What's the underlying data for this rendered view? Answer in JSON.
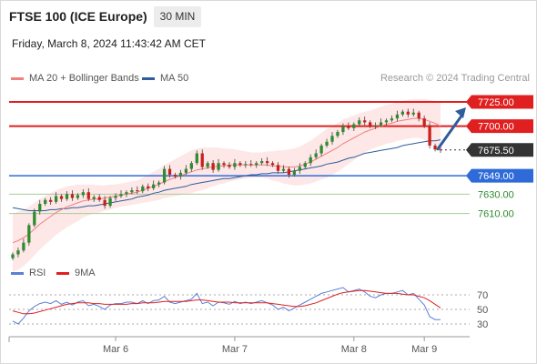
{
  "header": {
    "title": "FTSE 100 (ICE Europe)",
    "interval": "30 MIN",
    "datetime": "Friday, March 8, 2024 11:43:42 AM CET"
  },
  "legend": {
    "ma20_label": "MA 20 + Bollinger Bands",
    "ma50_label": "MA 50",
    "source": "Research © 2024 Trading Central",
    "rsi_label": "RSI",
    "rsi_ma_label": "9MA"
  },
  "colors": {
    "ma20": "#f08080",
    "bands_fill": "#fde3e3",
    "ma50": "#2f5d9b",
    "resistance": "#e02020",
    "pivot": "#2f6bd8",
    "support": "#2e8b2e",
    "support_line": "#a8cc98",
    "current": "#333333",
    "candle_up": "#2e8b2e",
    "candle_down": "#c8201a",
    "rsi": "#5b7fd6",
    "rsi_ma": "#e02020",
    "arrow": "#2f5d9b"
  },
  "chart_data": [
    {
      "type": "candlestick",
      "x_labels": [
        "Mar 6",
        "Mar 7",
        "Mar 8",
        "Mar 9"
      ],
      "ylim": [
        7560,
        7740
      ],
      "current_price": 7675.5,
      "levels": [
        {
          "value": 7725.0,
          "label": "7725.00",
          "kind": "resistance"
        },
        {
          "value": 7700.0,
          "label": "7700.00",
          "kind": "resistance"
        },
        {
          "value": 7675.5,
          "label": "7675.50",
          "kind": "current"
        },
        {
          "value": 7649.0,
          "label": "7649.00",
          "kind": "pivot"
        },
        {
          "value": 7630.0,
          "label": "7630.00",
          "kind": "support"
        },
        {
          "value": 7610.0,
          "label": "7610.00",
          "kind": "support"
        }
      ],
      "close": [
        7568,
        7572,
        7580,
        7598,
        7612,
        7620,
        7624,
        7622,
        7628,
        7625,
        7630,
        7626,
        7629,
        7632,
        7625,
        7627,
        7624,
        7618,
        7626,
        7628,
        7630,
        7632,
        7634,
        7633,
        7638,
        7636,
        7640,
        7642,
        7656,
        7650,
        7648,
        7652,
        7656,
        7662,
        7672,
        7658,
        7662,
        7655,
        7662,
        7660,
        7658,
        7662,
        7660,
        7661,
        7660,
        7662,
        7664,
        7662,
        7660,
        7654,
        7656,
        7650,
        7654,
        7658,
        7662,
        7668,
        7672,
        7680,
        7684,
        7690,
        7694,
        7700,
        7698,
        7702,
        7706,
        7704,
        7700,
        7701,
        7704,
        7706,
        7708,
        7712,
        7715,
        7712,
        7714,
        7708,
        7700,
        7680,
        7676,
        7675.5
      ],
      "ma20": [
        7580,
        7582,
        7585,
        7589,
        7594,
        7599,
        7603,
        7607,
        7611,
        7614,
        7617,
        7619,
        7621,
        7623,
        7624,
        7625,
        7625,
        7626,
        7627,
        7628,
        7629,
        7630,
        7631,
        7632,
        7634,
        7636,
        7638,
        7640,
        7643,
        7645,
        7647,
        7649,
        7651,
        7653,
        7655,
        7656,
        7657,
        7658,
        7659,
        7659,
        7660,
        7660,
        7660,
        7660,
        7660,
        7660,
        7660,
        7660,
        7659,
        7659,
        7658,
        7658,
        7658,
        7659,
        7661,
        7663,
        7666,
        7669,
        7672,
        7675,
        7678,
        7682,
        7685,
        7688,
        7691,
        7694,
        7696,
        7698,
        7700,
        7702,
        7703,
        7705,
        7706,
        7707,
        7708,
        7708,
        7707,
        7705,
        7703,
        7700
      ],
      "ma50": [
        7616,
        7615,
        7614,
        7613,
        7613,
        7613,
        7613,
        7614,
        7614,
        7615,
        7615,
        7616,
        7616,
        7617,
        7618,
        7618,
        7619,
        7620,
        7621,
        7622,
        7623,
        7624,
        7625,
        7627,
        7628,
        7629,
        7631,
        7632,
        7634,
        7635,
        7636,
        7637,
        7638,
        7640,
        7641,
        7642,
        7643,
        7644,
        7645,
        7646,
        7646,
        7647,
        7648,
        7649,
        7650,
        7650,
        7651,
        7651,
        7652,
        7652,
        7652,
        7653,
        7654,
        7655,
        7656,
        7657,
        7658,
        7659,
        7661,
        7662,
        7663,
        7665,
        7667,
        7668,
        7670,
        7672,
        7673,
        7674,
        7675,
        7676,
        7677,
        7678,
        7680,
        7681,
        7682,
        7683,
        7684,
        7685,
        7685,
        7686
      ],
      "band_width": [
        30,
        30,
        29,
        28,
        27,
        26,
        25,
        24,
        23,
        22,
        21,
        20,
        19,
        17,
        16,
        15,
        14,
        13,
        13,
        12,
        12,
        12,
        12,
        12,
        13,
        14,
        15,
        16,
        17,
        18,
        19,
        20,
        21,
        22,
        22,
        22,
        21,
        20,
        19,
        18,
        17,
        16,
        15,
        14,
        13,
        13,
        13,
        14,
        15,
        16,
        17,
        18,
        19,
        20,
        21,
        22,
        23,
        24,
        25,
        25,
        25,
        25,
        24,
        23,
        22,
        21,
        20,
        20,
        20,
        20,
        20,
        20,
        20,
        20,
        20,
        20,
        21,
        22,
        23,
        24
      ]
    },
    {
      "type": "line",
      "name": "RSI",
      "ylim": [
        20,
        85
      ],
      "ticks": [
        70,
        50,
        30
      ],
      "rsi": [
        34,
        30,
        38,
        48,
        54,
        58,
        60,
        58,
        62,
        57,
        60,
        56,
        60,
        62,
        55,
        57,
        54,
        50,
        56,
        58,
        58,
        60,
        60,
        58,
        62,
        58,
        62,
        63,
        68,
        60,
        58,
        60,
        62,
        64,
        72,
        58,
        60,
        55,
        60,
        59,
        57,
        61,
        58,
        60,
        58,
        60,
        62,
        59,
        56,
        50,
        53,
        48,
        52,
        56,
        60,
        64,
        68,
        72,
        74,
        76,
        78,
        80,
        74,
        76,
        78,
        74,
        68,
        66,
        70,
        72,
        72,
        74,
        76,
        70,
        72,
        64,
        56,
        40,
        36,
        36
      ],
      "rsi_ma": [
        48,
        46,
        44,
        44,
        45,
        47,
        49,
        51,
        53,
        55,
        57,
        58,
        59,
        59,
        59,
        58,
        58,
        57,
        57,
        57,
        57,
        57,
        58,
        58,
        59,
        59,
        59,
        60,
        61,
        61,
        61,
        61,
        61,
        62,
        63,
        63,
        62,
        61,
        60,
        60,
        60,
        59,
        59,
        59,
        59,
        59,
        59,
        59,
        58,
        57,
        56,
        55,
        54,
        54,
        55,
        57,
        59,
        62,
        65,
        68,
        71,
        73,
        74,
        75,
        76,
        76,
        75,
        74,
        73,
        72,
        72,
        72,
        71,
        70,
        70,
        68,
        66,
        62,
        57,
        52
      ]
    }
  ]
}
